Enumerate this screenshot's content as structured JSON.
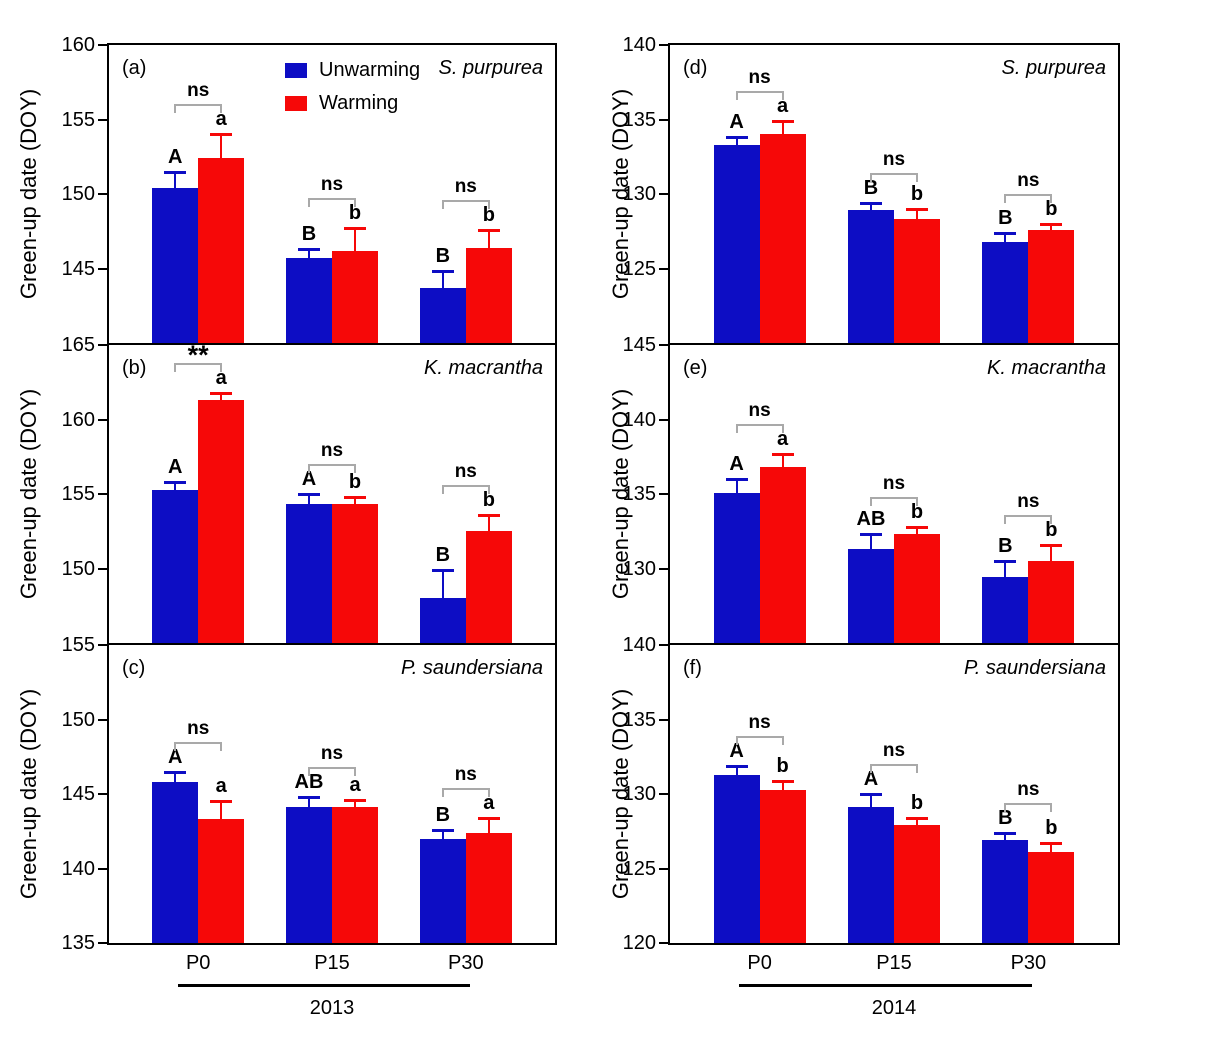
{
  "figure": {
    "ylabel": "Green-up date (DOY)",
    "years": [
      "2013",
      "2014"
    ],
    "colors": {
      "unwarming": "#0d0dc4",
      "warming": "#f60808",
      "bracket": "#a9a9a9",
      "axis": "#000000"
    },
    "legend": {
      "items": [
        {
          "label": "Unwarming",
          "key": "unwarming"
        },
        {
          "label": "Warming",
          "key": "warming"
        }
      ]
    }
  },
  "chart_data": {
    "type": "bar",
    "ylabel": "Green-up date (DOY)",
    "categories": [
      "P0",
      "P15",
      "P30"
    ],
    "panels": [
      {
        "label": "(a)",
        "species": "S. purpurea",
        "year": "2013",
        "ylim": [
          140,
          160
        ],
        "yticks": [
          145,
          150,
          155,
          160
        ],
        "series": [
          {
            "name": "Unwarming",
            "key": "unwarming",
            "values": [
              150.4,
              145.7,
              143.7
            ],
            "err_up": [
              1.1,
              0.6,
              1.1
            ],
            "letters": [
              "A",
              "B",
              "B"
            ]
          },
          {
            "name": "Warming",
            "key": "warming",
            "values": [
              152.4,
              146.2,
              146.4
            ],
            "err_up": [
              1.6,
              1.5,
              1.2
            ],
            "letters": [
              "a",
              "b",
              "b"
            ]
          }
        ],
        "significance": [
          "ns",
          "ns",
          "ns"
        ],
        "show_legend": true
      },
      {
        "label": "(b)",
        "species": "K. macrantha",
        "year": "2013",
        "ylim": [
          145,
          165
        ],
        "yticks": [
          150,
          155,
          160,
          165
        ],
        "series": [
          {
            "name": "Unwarming",
            "key": "unwarming",
            "values": [
              155.3,
              154.3,
              148.0
            ],
            "err_up": [
              0.5,
              0.7,
              1.9
            ],
            "letters": [
              "A",
              "A",
              "B"
            ]
          },
          {
            "name": "Warming",
            "key": "warming",
            "values": [
              161.3,
              154.3,
              152.5
            ],
            "err_up": [
              0.5,
              0.5,
              1.1
            ],
            "letters": [
              "a",
              "b",
              "b"
            ]
          }
        ],
        "significance": [
          "**",
          "ns",
          "ns"
        ],
        "show_legend": false
      },
      {
        "label": "(c)",
        "species": "P. saundersiana",
        "year": "2013",
        "ylim": [
          135,
          155
        ],
        "yticks": [
          135,
          140,
          145,
          150,
          155
        ],
        "series": [
          {
            "name": "Unwarming",
            "key": "unwarming",
            "values": [
              145.8,
              144.1,
              142.0
            ],
            "err_up": [
              0.7,
              0.7,
              0.6
            ],
            "letters": [
              "A",
              "AB",
              "B"
            ]
          },
          {
            "name": "Warming",
            "key": "warming",
            "values": [
              143.3,
              144.1,
              142.4
            ],
            "err_up": [
              1.2,
              0.5,
              1.0
            ],
            "letters": [
              "a",
              "a",
              "a"
            ]
          }
        ],
        "significance": [
          "ns",
          "ns",
          "ns"
        ],
        "show_legend": false
      },
      {
        "label": "(d)",
        "species": "S. purpurea",
        "year": "2014",
        "ylim": [
          120,
          140
        ],
        "yticks": [
          125,
          130,
          135,
          140
        ],
        "series": [
          {
            "name": "Unwarming",
            "key": "unwarming",
            "values": [
              133.3,
              128.9,
              126.8
            ],
            "err_up": [
              0.5,
              0.5,
              0.6
            ],
            "letters": [
              "A",
              "B",
              "B"
            ]
          },
          {
            "name": "Warming",
            "key": "warming",
            "values": [
              134.0,
              128.3,
              127.6
            ],
            "err_up": [
              0.9,
              0.7,
              0.4
            ],
            "letters": [
              "a",
              "b",
              "b"
            ]
          }
        ],
        "significance": [
          "ns",
          "ns",
          "ns"
        ],
        "show_legend": false
      },
      {
        "label": "(e)",
        "species": "K. macrantha",
        "year": "2014",
        "ylim": [
          125,
          145
        ],
        "yticks": [
          130,
          135,
          140,
          145
        ],
        "series": [
          {
            "name": "Unwarming",
            "key": "unwarming",
            "values": [
              135.1,
              131.3,
              129.4
            ],
            "err_up": [
              0.9,
              1.0,
              1.1
            ],
            "letters": [
              "A",
              "AB",
              "B"
            ]
          },
          {
            "name": "Warming",
            "key": "warming",
            "values": [
              136.8,
              132.3,
              130.5
            ],
            "err_up": [
              0.9,
              0.5,
              1.1
            ],
            "letters": [
              "a",
              "b",
              "b"
            ]
          }
        ],
        "significance": [
          "ns",
          "ns",
          "ns"
        ],
        "show_legend": false
      },
      {
        "label": "(f)",
        "species": "P. saundersiana",
        "year": "2014",
        "ylim": [
          120,
          140
        ],
        "yticks": [
          120,
          125,
          130,
          135,
          140
        ],
        "series": [
          {
            "name": "Unwarming",
            "key": "unwarming",
            "values": [
              131.3,
              129.1,
              126.9
            ],
            "err_up": [
              0.6,
              0.9,
              0.5
            ],
            "letters": [
              "A",
              "A",
              "B"
            ]
          },
          {
            "name": "Warming",
            "key": "warming",
            "values": [
              130.3,
              127.9,
              126.1
            ],
            "err_up": [
              0.6,
              0.5,
              0.6
            ],
            "letters": [
              "b",
              "b",
              "b"
            ]
          }
        ],
        "significance": [
          "ns",
          "ns",
          "ns"
        ],
        "show_legend": false
      }
    ]
  }
}
